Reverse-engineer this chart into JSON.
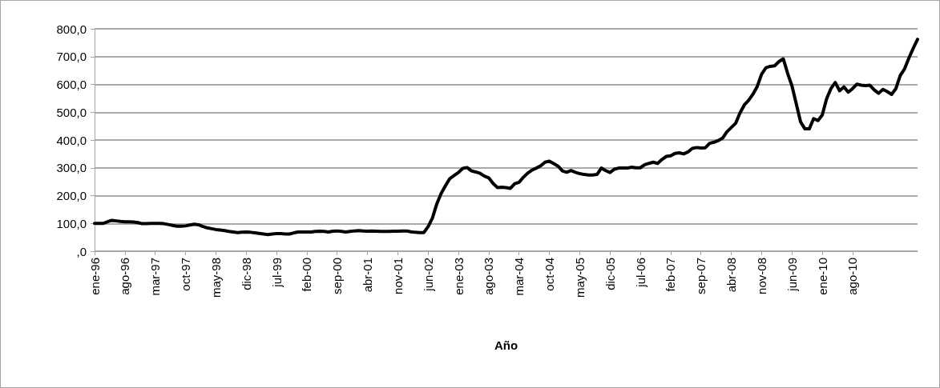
{
  "chart_data": {
    "type": "line",
    "xlabel": "Año",
    "categories": [
      "ene-96",
      null,
      null,
      null,
      null,
      null,
      null,
      "ago-96",
      null,
      null,
      null,
      null,
      null,
      null,
      "mar-97",
      null,
      null,
      null,
      null,
      null,
      null,
      "oct-97",
      null,
      null,
      null,
      null,
      null,
      null,
      "may-98",
      null,
      null,
      null,
      null,
      null,
      null,
      "dic-98",
      null,
      null,
      null,
      null,
      null,
      null,
      "jul-99",
      null,
      null,
      null,
      null,
      null,
      null,
      "feb-00",
      null,
      null,
      null,
      null,
      null,
      null,
      "sep-00",
      null,
      null,
      null,
      null,
      null,
      null,
      "abr-01",
      null,
      null,
      null,
      null,
      null,
      null,
      "nov-01",
      null,
      null,
      null,
      null,
      null,
      null,
      "jun-02",
      null,
      null,
      null,
      null,
      null,
      null,
      "ene-03",
      null,
      null,
      null,
      null,
      null,
      null,
      "ago-03",
      null,
      null,
      null,
      null,
      null,
      null,
      "mar-04",
      null,
      null,
      null,
      null,
      null,
      null,
      "oct-04",
      null,
      null,
      null,
      null,
      null,
      null,
      "may-05",
      null,
      null,
      null,
      null,
      null,
      null,
      "dic-05",
      null,
      null,
      null,
      null,
      null,
      null,
      "jul-06",
      null,
      null,
      null,
      null,
      null,
      null,
      "feb-07",
      null,
      null,
      null,
      null,
      null,
      null,
      "sep-07",
      null,
      null,
      null,
      null,
      null,
      null,
      "abr-08",
      null,
      null,
      null,
      null,
      null,
      null,
      "nov-08",
      null,
      null,
      null,
      null,
      null,
      null,
      "jun-09",
      null,
      null,
      null,
      null,
      null,
      null,
      "ene-10",
      null,
      null,
      null,
      null,
      null,
      null,
      "ago-10",
      null,
      null,
      null,
      null,
      null,
      null,
      null,
      null,
      null,
      null,
      null,
      null,
      null,
      null,
      null
    ],
    "series": [
      {
        "color": "#000000",
        "values": [
          100,
          100,
          100,
          106,
          111,
          109,
          107,
          106,
          106,
          105,
          103,
          99,
          99,
          100,
          100,
          100,
          99,
          96,
          93,
          90,
          90,
          91,
          94,
          97,
          95,
          89,
          84,
          81,
          78,
          76,
          74,
          71,
          69,
          67,
          68,
          69,
          68,
          66,
          64,
          62,
          60,
          62,
          63,
          63,
          62,
          62,
          66,
          69,
          69,
          69,
          69,
          71,
          72,
          71,
          69,
          72,
          73,
          71,
          69,
          71,
          73,
          74,
          73,
          72,
          73,
          72,
          71,
          71,
          71,
          72,
          72,
          73,
          73,
          70,
          68,
          67,
          67,
          88,
          119,
          170,
          207,
          235,
          261,
          272,
          283,
          298,
          301,
          289,
          285,
          280,
          270,
          264,
          244,
          229,
          230,
          229,
          226,
          243,
          248,
          266,
          281,
          292,
          299,
          307,
          320,
          324,
          315,
          306,
          289,
          284,
          290,
          284,
          279,
          276,
          274,
          274,
          276,
          299,
          290,
          283,
          295,
          299,
          299,
          299,
          302,
          300,
          300,
          311,
          316,
          320,
          316,
          330,
          341,
          343,
          352,
          354,
          350,
          357,
          370,
          373,
          371,
          372,
          388,
          392,
          398,
          407,
          430,
          445,
          460,
          497,
          526,
          543,
          565,
          593,
          637,
          660,
          665,
          667,
          682,
          692,
          640,
          595,
          530,
          465,
          440,
          440,
          477,
          470,
          490,
          548,
          585,
          607,
          577,
          591,
          572,
          585,
          601,
          597,
          596,
          597,
          580,
          568,
          582,
          574,
          564,
          585,
          632,
          656,
          695,
          730,
          762
        ]
      }
    ],
    "ylim": [
      0,
      800
    ],
    "yticks": [
      {
        "value": 0,
        "label": ",0"
      },
      {
        "value": 100,
        "label": "100,0"
      },
      {
        "value": 200,
        "label": "200,0"
      },
      {
        "value": 300,
        "label": "300,0"
      },
      {
        "value": 400,
        "label": "400,0"
      },
      {
        "value": 500,
        "label": "500,0"
      },
      {
        "value": 600,
        "label": "600,0"
      },
      {
        "value": 700,
        "label": "700,0"
      },
      {
        "value": 800,
        "label": "800,0"
      }
    ],
    "grid": "y",
    "marker": "none",
    "line_style": "solid"
  }
}
